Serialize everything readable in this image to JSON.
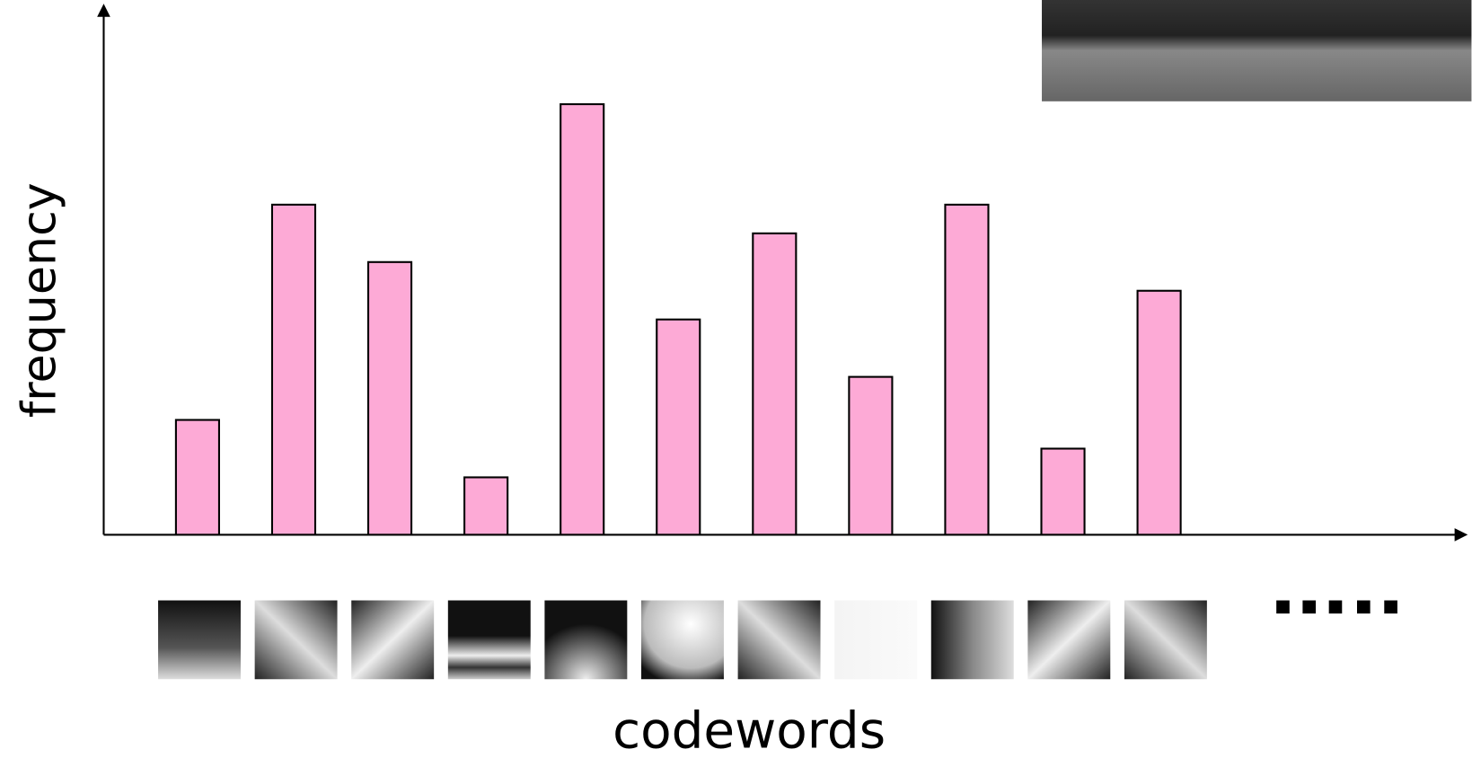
{
  "chart_data": {
    "type": "bar",
    "y_label": "frequency",
    "x_label": "codewords",
    "categories": [
      null,
      null,
      null,
      null,
      null,
      null,
      null,
      null,
      null,
      null,
      null
    ],
    "values": [
      4,
      11.5,
      9.5,
      2,
      15,
      7.5,
      10.5,
      5.5,
      11.5,
      3,
      8.5
    ],
    "color": "#fdaad6",
    "ylim": [
      0,
      18.5
    ],
    "grid": false
  }
}
